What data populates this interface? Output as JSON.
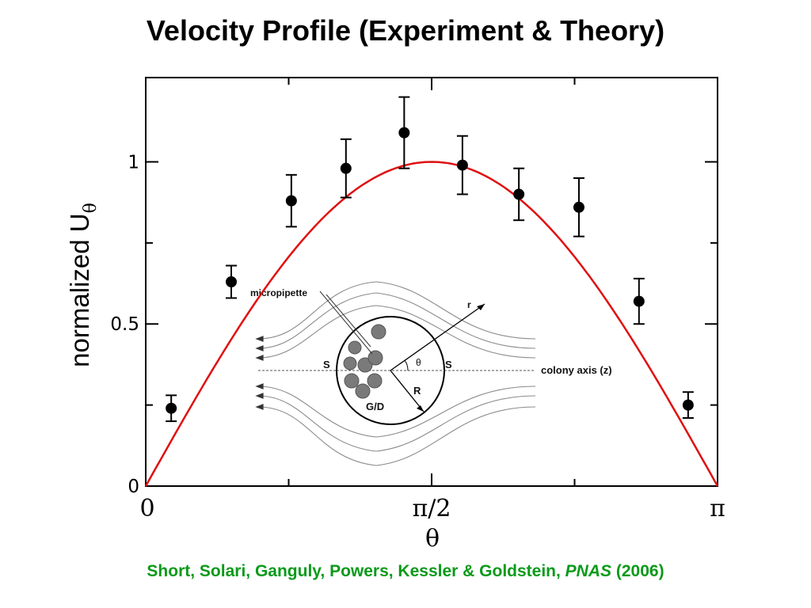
{
  "slide": {
    "title": "Velocity Profile (Experiment & Theory)",
    "citation_authors": "Short, Solari, Ganguly, Powers, Kessler & Goldstein, ",
    "citation_journal": "PNAS",
    "citation_year": " (2006)"
  },
  "colors": {
    "theory_curve": "#e01010",
    "citation": "#0a9a1a",
    "markers": "#000000"
  },
  "chart_data": {
    "type": "scatter",
    "title": "",
    "xlabel": "θ",
    "ylabel": "normalized U",
    "ylabel_subscript": "θ",
    "xlim": [
      0,
      3.14159
    ],
    "ylim": [
      0,
      1.26
    ],
    "xticks": [
      {
        "value": 0,
        "label": "0"
      },
      {
        "value": 1.5708,
        "label": "π/2"
      },
      {
        "value": 3.14159,
        "label": "π"
      }
    ],
    "yticks": [
      {
        "value": 0,
        "label": "0"
      },
      {
        "value": 0.5,
        "label": "0.5"
      },
      {
        "value": 1,
        "label": "1"
      }
    ],
    "minor_xticks": [
      0.7854,
      2.3562
    ],
    "minor_yticks": [
      0.25,
      0.75
    ],
    "grid": false,
    "series": [
      {
        "kind": "experiment",
        "marker": "filled-circle",
        "error_bars": true,
        "x": [
          0.14,
          0.47,
          0.8,
          1.1,
          1.42,
          1.74,
          2.05,
          2.38,
          2.71,
          2.98
        ],
        "y": [
          0.24,
          0.63,
          0.88,
          0.98,
          1.09,
          0.99,
          0.9,
          0.86,
          0.57,
          0.25
        ],
        "err": [
          0.04,
          0.05,
          0.08,
          0.09,
          0.11,
          0.09,
          0.08,
          0.09,
          0.07,
          0.04
        ]
      },
      {
        "kind": "theory",
        "line": "solid",
        "function": "sin(theta)"
      }
    ],
    "inset": {
      "labels": {
        "micropipette": "micropipette",
        "r": "r",
        "theta": "θ",
        "S_left": "S",
        "S_right": "S",
        "colony_axis": "colony axis (z)",
        "R": "R",
        "GD": "G/D"
      }
    }
  }
}
